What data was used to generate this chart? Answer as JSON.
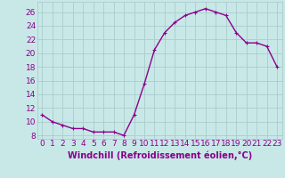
{
  "x": [
    0,
    1,
    2,
    3,
    4,
    5,
    6,
    7,
    8,
    9,
    10,
    11,
    12,
    13,
    14,
    15,
    16,
    17,
    18,
    19,
    20,
    21,
    22,
    23
  ],
  "y": [
    11,
    10,
    9.5,
    9,
    9,
    8.5,
    8.5,
    8.5,
    8,
    11,
    15.5,
    20.5,
    23,
    24.5,
    25.5,
    26,
    26.5,
    26,
    25.5,
    23,
    21.5,
    21.5,
    21,
    18
  ],
  "line_color": "#8B008B",
  "marker": "+",
  "bg_color": "#c8e8e8",
  "grid_color": "#aacccc",
  "xlim": [
    -0.5,
    23.5
  ],
  "ylim": [
    7.5,
    27.5
  ],
  "yticks": [
    8,
    10,
    12,
    14,
    16,
    18,
    20,
    22,
    24,
    26
  ],
  "xtick_labels": [
    "0",
    "1",
    "2",
    "3",
    "4",
    "5",
    "6",
    "7",
    "8",
    "9",
    "10",
    "11",
    "12",
    "13",
    "14",
    "15",
    "16",
    "17",
    "18",
    "19",
    "20",
    "21",
    "22",
    "23"
  ],
  "font_color": "#880088",
  "xlabel": "Windchill (Refroidissement éolien,°C)",
  "font_size": 6.5,
  "xlabel_font_size": 7,
  "marker_size": 3,
  "line_width": 1.0
}
